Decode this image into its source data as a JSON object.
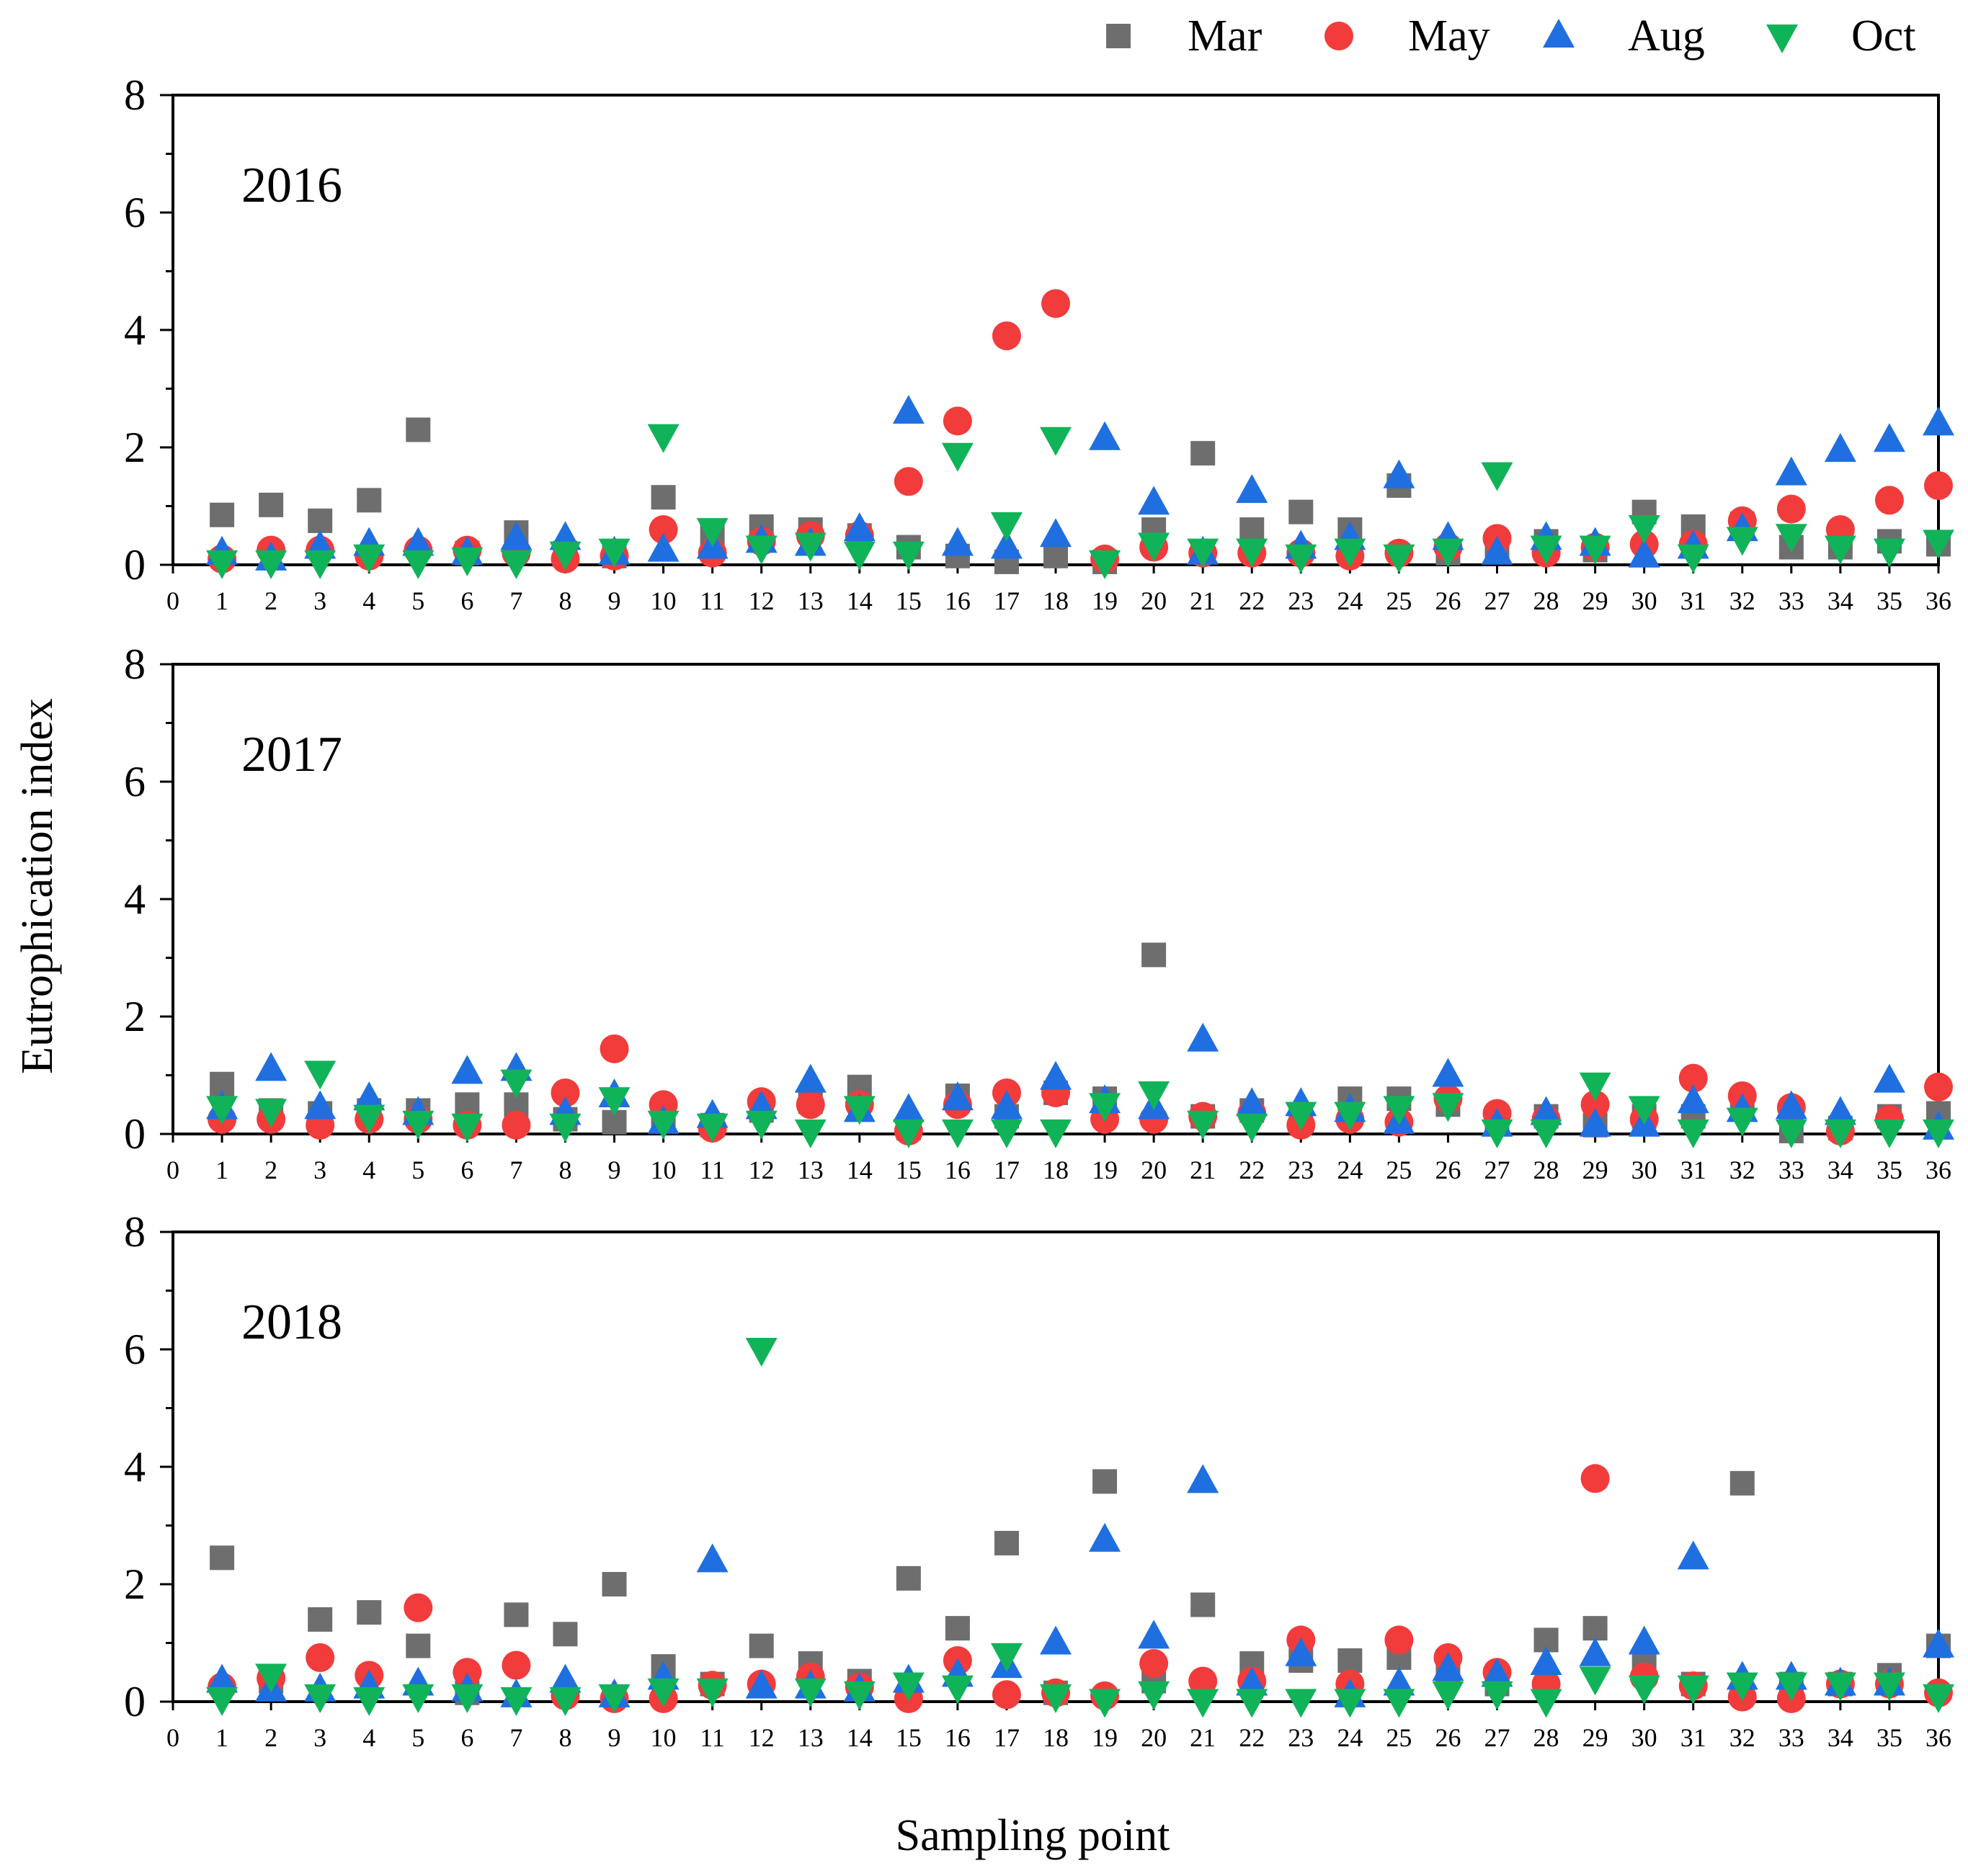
{
  "chart_data": {
    "type": "scatter",
    "xlabel": "Sampling point",
    "ylabel": "Eutrophication index",
    "xlim": [
      0,
      36
    ],
    "ylim": [
      0,
      8
    ],
    "x_ticks": [
      0,
      1,
      2,
      3,
      4,
      5,
      6,
      7,
      8,
      9,
      10,
      11,
      12,
      13,
      14,
      15,
      16,
      17,
      18,
      19,
      20,
      21,
      22,
      23,
      24,
      25,
      26,
      27,
      28,
      29,
      30,
      31,
      32,
      33,
      34,
      35,
      36
    ],
    "y_ticks": [
      0,
      2,
      4,
      6,
      8
    ],
    "legend": {
      "placement": "top-right",
      "entries": [
        {
          "name": "Mar",
          "marker": "square",
          "color": "#6e6e6e"
        },
        {
          "name": "May",
          "marker": "circle",
          "color": "#f23b3b"
        },
        {
          "name": "Aug",
          "marker": "triangle-up",
          "color": "#1f6fe0"
        },
        {
          "name": "Oct",
          "marker": "triangle-down",
          "color": "#11b359"
        }
      ]
    },
    "x": [
      1,
      2,
      3,
      4,
      5,
      6,
      7,
      8,
      9,
      10,
      11,
      12,
      13,
      14,
      15,
      16,
      17,
      18,
      19,
      20,
      21,
      22,
      23,
      24,
      25,
      26,
      27,
      28,
      29,
      30,
      31,
      32,
      33,
      34,
      35,
      36
    ],
    "panels": [
      {
        "label": "2016",
        "series": [
          {
            "name": "Mar",
            "values": [
              0.85,
              1.02,
              0.75,
              1.1,
              2.3,
              0.2,
              0.55,
              0.2,
              0.15,
              1.15,
              0.5,
              0.65,
              0.6,
              0.5,
              0.3,
              0.15,
              0.05,
              0.15,
              0.05,
              0.6,
              1.9,
              0.6,
              0.9,
              0.6,
              1.35,
              0.2,
              0.3,
              0.4,
              0.25,
              0.9,
              0.65,
              0.7,
              0.3,
              0.3,
              0.4,
              0.35
            ]
          },
          {
            "name": "May",
            "values": [
              0.1,
              0.25,
              0.25,
              0.15,
              0.25,
              0.25,
              0.2,
              0.1,
              0.15,
              0.6,
              0.2,
              0.4,
              0.5,
              0.5,
              1.42,
              2.45,
              3.9,
              4.45,
              0.1,
              0.3,
              0.2,
              0.2,
              0.2,
              0.15,
              0.2,
              0.3,
              0.45,
              0.2,
              0.3,
              0.35,
              0.35,
              0.75,
              0.95,
              0.6,
              1.1,
              1.35
            ]
          },
          {
            "name": "Aug",
            "values": [
              0.2,
              0.1,
              0.3,
              0.35,
              0.35,
              0.2,
              0.45,
              0.45,
              0.2,
              0.25,
              0.3,
              0.4,
              0.35,
              0.6,
              2.6,
              0.35,
              0.3,
              0.5,
              2.15,
              1.05,
              0.2,
              1.25,
              0.3,
              0.45,
              1.5,
              0.45,
              0.2,
              0.45,
              0.35,
              0.15,
              0.3,
              0.6,
              1.55,
              1.95,
              2.12,
              2.4
            ]
          },
          {
            "name": "Oct",
            "values": [
              0.05,
              0.05,
              0.05,
              0.15,
              0.05,
              0.1,
              0.05,
              0.2,
              0.25,
              2.2,
              0.6,
              0.3,
              0.35,
              0.2,
              0.2,
              1.88,
              0.7,
              2.15,
              0.05,
              0.35,
              0.25,
              0.25,
              0.15,
              0.25,
              0.15,
              0.25,
              1.55,
              0.3,
              0.3,
              0.65,
              0.15,
              0.45,
              0.5,
              0.3,
              0.25,
              0.4
            ]
          }
        ]
      },
      {
        "label": "2017",
        "series": [
          {
            "name": "Mar",
            "values": [
              0.85,
              0.4,
              0.35,
              0.4,
              0.4,
              0.5,
              0.5,
              0.25,
              0.2,
              0.25,
              0.15,
              0.4,
              0.55,
              0.8,
              0.1,
              0.65,
              0.3,
              0.7,
              0.6,
              3.05,
              0.3,
              0.4,
              0.25,
              0.6,
              0.6,
              0.5,
              0.25,
              0.3,
              0.15,
              0.3,
              0.3,
              0.45,
              0.05,
              0.1,
              0.3,
              0.35
            ]
          },
          {
            "name": "May",
            "values": [
              0.25,
              0.25,
              0.15,
              0.25,
              0.25,
              0.15,
              0.15,
              0.7,
              1.45,
              0.5,
              0.1,
              0.55,
              0.5,
              0.5,
              0.05,
              0.5,
              0.7,
              0.7,
              0.25,
              0.25,
              0.3,
              0.35,
              0.15,
              0.25,
              0.2,
              0.6,
              0.35,
              0.25,
              0.5,
              0.25,
              0.95,
              0.65,
              0.45,
              0.05,
              0.25,
              0.8
            ]
          },
          {
            "name": "Aug",
            "values": [
              0.45,
              1.1,
              0.45,
              0.6,
              0.35,
              1.05,
              1.1,
              0.35,
              0.65,
              0.2,
              0.3,
              0.45,
              0.9,
              0.4,
              0.4,
              0.6,
              0.45,
              0.95,
              0.55,
              0.45,
              1.6,
              0.5,
              0.5,
              0.4,
              0.2,
              1.0,
              0.15,
              0.35,
              0.15,
              0.15,
              0.55,
              0.4,
              0.45,
              0.35,
              0.9,
              0.1
            ]
          },
          {
            "name": "Oct",
            "values": [
              0.45,
              0.4,
              1.05,
              0.3,
              0.2,
              0.15,
              0.9,
              0.15,
              0.6,
              0.2,
              0.15,
              0.2,
              0.05,
              0.45,
              0.05,
              0.05,
              0.05,
              0.05,
              0.5,
              0.7,
              0.2,
              0.15,
              0.35,
              0.35,
              0.45,
              0.5,
              0.05,
              0.05,
              0.85,
              0.45,
              0.05,
              0.25,
              0.05,
              0.05,
              0.05,
              0.05
            ]
          }
        ]
      },
      {
        "label": "2018",
        "series": [
          {
            "name": "Mar",
            "values": [
              2.45,
              0.35,
              1.4,
              1.52,
              0.95,
              0.15,
              1.48,
              1.15,
              2.0,
              0.6,
              0.3,
              0.95,
              0.65,
              0.35,
              2.1,
              1.25,
              2.7,
              0.15,
              3.75,
              0.35,
              1.65,
              0.65,
              0.7,
              0.7,
              0.75,
              0.45,
              0.3,
              1.05,
              1.25,
              0.6,
              0.3,
              3.72,
              0.3,
              0.3,
              0.45,
              0.95
            ]
          },
          {
            "name": "May",
            "values": [
              0.25,
              0.4,
              0.75,
              0.45,
              1.6,
              0.5,
              0.62,
              0.1,
              0.05,
              0.05,
              0.28,
              0.3,
              0.42,
              0.25,
              0.05,
              0.7,
              0.12,
              0.15,
              0.1,
              0.65,
              0.35,
              0.35,
              1.05,
              0.3,
              1.05,
              0.75,
              0.5,
              0.3,
              3.8,
              0.42,
              0.27,
              0.08,
              0.05,
              0.3,
              0.3,
              0.15
            ]
          },
          {
            "name": "Aug",
            "values": [
              0.35,
              0.2,
              0.2,
              0.25,
              0.3,
              0.2,
              0.1,
              0.35,
              0.1,
              0.4,
              2.4,
              0.25,
              0.25,
              0.2,
              0.35,
              0.45,
              0.6,
              1.0,
              2.75,
              1.1,
              3.75,
              0.3,
              0.8,
              0.1,
              0.3,
              0.55,
              0.45,
              0.65,
              0.8,
              1.0,
              2.45,
              0.4,
              0.4,
              0.3,
              0.3,
              0.95
            ]
          },
          {
            "name": "Oct",
            "values": [
              0.05,
              0.45,
              0.1,
              0.05,
              0.1,
              0.1,
              0.05,
              0.05,
              0.1,
              0.2,
              0.2,
              6.0,
              0.2,
              0.15,
              0.3,
              0.25,
              0.8,
              0.1,
              0.02,
              0.15,
              0.02,
              0.02,
              0.02,
              0.02,
              0.02,
              0.15,
              0.15,
              0.02,
              0.4,
              0.25,
              0.25,
              0.3,
              0.3,
              0.3,
              0.3,
              0.1
            ]
          }
        ]
      }
    ]
  }
}
